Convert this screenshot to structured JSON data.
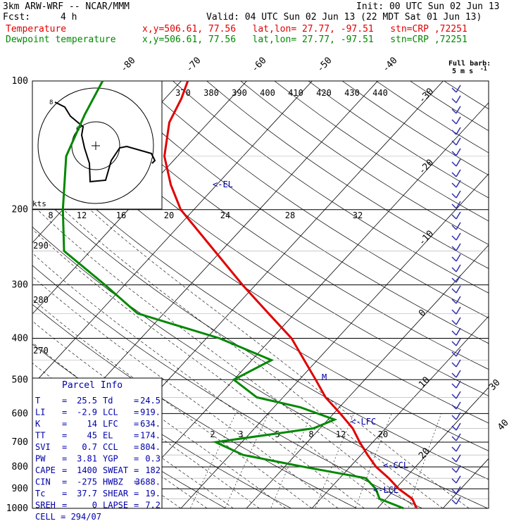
{
  "header": {
    "model": "3km ARW-WRF -- NCAR/MMM",
    "init": "Init: 00 UTC Sun 02 Jun 13",
    "fcst_label": "Fcst:",
    "fcst_value": "4 h",
    "valid": "Valid: 04 UTC Sun 02 Jun 13 (22 MDT Sat 01 Jun 13)",
    "temp_label": "Temperature",
    "temp_loc": "x,y=506.61, 77.56   lat,lon= 27.77, -97.51   stn=CRP ,72251",
    "dew_label": "Dewpoint temperature",
    "dew_loc": "x,y=506.61, 77.56   lat,lon= 27.77, -97.51   stn=CRP ,72251"
  },
  "chart_data": {
    "type": "line",
    "title": "Skew-T log-P sounding",
    "pressure_levels": [
      "100",
      "200",
      "300",
      "400",
      "500",
      "600",
      "700",
      "800",
      "900",
      "1000"
    ],
    "isotherm_labels": [
      "-80",
      "-70",
      "-60",
      "-50",
      "-40",
      "-30",
      "-20",
      "-10",
      "0",
      "10",
      "20",
      "30",
      "40"
    ],
    "theta_labels": [
      "370",
      "380",
      "390",
      "400",
      "410",
      "420",
      "430",
      "440"
    ],
    "hodo_speed_labels": [
      "8",
      "12",
      "16",
      "20",
      "24",
      "28",
      "32"
    ],
    "hodo_units": "kts",
    "dry_adiabat_labels": [
      "290",
      "280",
      "270"
    ],
    "mixing_ratio_labels": [
      "2",
      "3",
      "5",
      "8",
      "12",
      "20"
    ],
    "annotations": [
      "<-EL",
      "<-LFC",
      "<-CCL",
      "<-LCL",
      "M"
    ],
    "barb_caption_1": "Full barb:",
    "barb_caption_2": "5 m s",
    "barb_caption_exp": "-1",
    "series": [
      {
        "name": "Temperature",
        "color": "#e00000",
        "points": [
          [
            1000,
            26.0
          ],
          [
            950,
            24.0
          ],
          [
            900,
            20.5
          ],
          [
            850,
            17.5
          ],
          [
            800,
            14.0
          ],
          [
            750,
            11.0
          ],
          [
            700,
            8.0
          ],
          [
            650,
            5.0
          ],
          [
            600,
            1.0
          ],
          [
            550,
            -3.5
          ],
          [
            500,
            -7.5
          ],
          [
            450,
            -12.0
          ],
          [
            400,
            -17.0
          ],
          [
            350,
            -24.0
          ],
          [
            300,
            -32.0
          ],
          [
            250,
            -41.0
          ],
          [
            200,
            -52.0
          ],
          [
            175,
            -57.0
          ],
          [
            150,
            -62.0
          ],
          [
            125,
            -66.0
          ],
          [
            110,
            -67.5
          ],
          [
            100,
            -69.0
          ]
        ]
      },
      {
        "name": "Dewpoint temperature",
        "color": "#008800",
        "points": [
          [
            1000,
            24.0
          ],
          [
            950,
            19.0
          ],
          [
            900,
            17.0
          ],
          [
            850,
            14.0
          ],
          [
            800,
            3.0
          ],
          [
            750,
            -8.0
          ],
          [
            700,
            -14.0
          ],
          [
            650,
            -1.0
          ],
          [
            620,
            1.0
          ],
          [
            580,
            -6.0
          ],
          [
            550,
            -14.0
          ],
          [
            500,
            -20.0
          ],
          [
            450,
            -17.0
          ],
          [
            400,
            -28.0
          ],
          [
            350,
            -44.0
          ],
          [
            300,
            -53.0
          ],
          [
            250,
            -64.0
          ],
          [
            200,
            -70.0
          ],
          [
            150,
            -77.0
          ],
          [
            120,
            -80.0
          ],
          [
            100,
            -82.0
          ]
        ]
      }
    ]
  },
  "parcel_info": {
    "title": "Parcel Info",
    "rows": [
      {
        "k1": "T",
        "v1": "25.5",
        "k2": "Td",
        "v2": "24.5"
      },
      {
        "k1": "LI",
        "v1": "-2.9",
        "k2": "LCL",
        "v2": "919."
      },
      {
        "k1": "K",
        "v1": "14",
        "k2": "LFC",
        "v2": "634."
      },
      {
        "k1": "TT",
        "v1": "45",
        "k2": "EL",
        "v2": "174."
      },
      {
        "k1": "SVI",
        "v1": "0.7",
        "k2": "CCL",
        "v2": "804."
      },
      {
        "k1": "PW",
        "v1": "3.81",
        "k2": "YGP",
        "v2": "0.3"
      },
      {
        "k1": "CAPE",
        "v1": "1400",
        "k2": "SWEAT",
        "v2": "182"
      },
      {
        "k1": "CIN",
        "v1": "-275",
        "k2": "HWBZ",
        "v2": "3688."
      },
      {
        "k1": "Tc",
        "v1": "37.7",
        "k2": "SHEAR",
        "v2": "19."
      },
      {
        "k1": "SREH",
        "v1": "0",
        "k2": "LAPSE",
        "v2": "7.2"
      }
    ],
    "cell_label": "CELL =",
    "cell_value": "294/07"
  }
}
